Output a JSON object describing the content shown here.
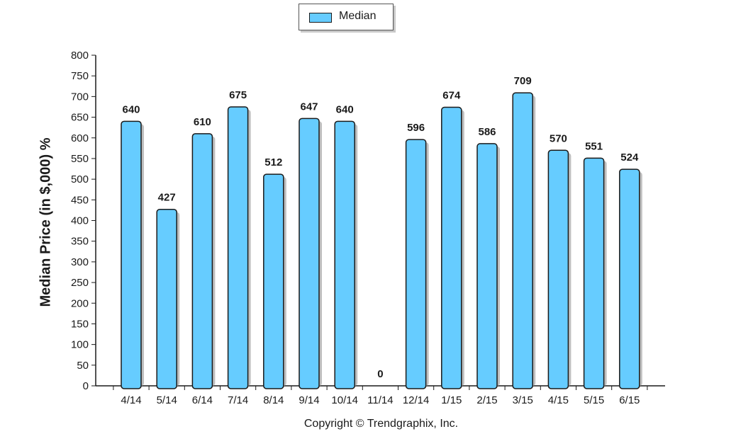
{
  "chart_data": {
    "type": "bar",
    "categories": [
      "4/14",
      "5/14",
      "6/14",
      "7/14",
      "8/14",
      "9/14",
      "10/14",
      "11/14",
      "12/14",
      "1/15",
      "2/15",
      "3/15",
      "4/15",
      "5/15",
      "6/15"
    ],
    "series": [
      {
        "name": "Median",
        "values": [
          640,
          427,
          610,
          675,
          512,
          647,
          640,
          0,
          596,
          674,
          586,
          709,
          570,
          551,
          524
        ]
      }
    ],
    "ylabel": "Median Price (in $,000) %",
    "ylim": [
      0,
      800
    ],
    "yticks": [
      0,
      50,
      100,
      150,
      200,
      250,
      300,
      350,
      400,
      450,
      500,
      550,
      600,
      650,
      700,
      750,
      800
    ],
    "legend_position": "top-center",
    "grid": false,
    "bar_color": "#66CCFF",
    "bar_outline_color": "#1a1a1a"
  },
  "footer": {
    "copyright": "Copyright © Trendgraphix, Inc."
  }
}
